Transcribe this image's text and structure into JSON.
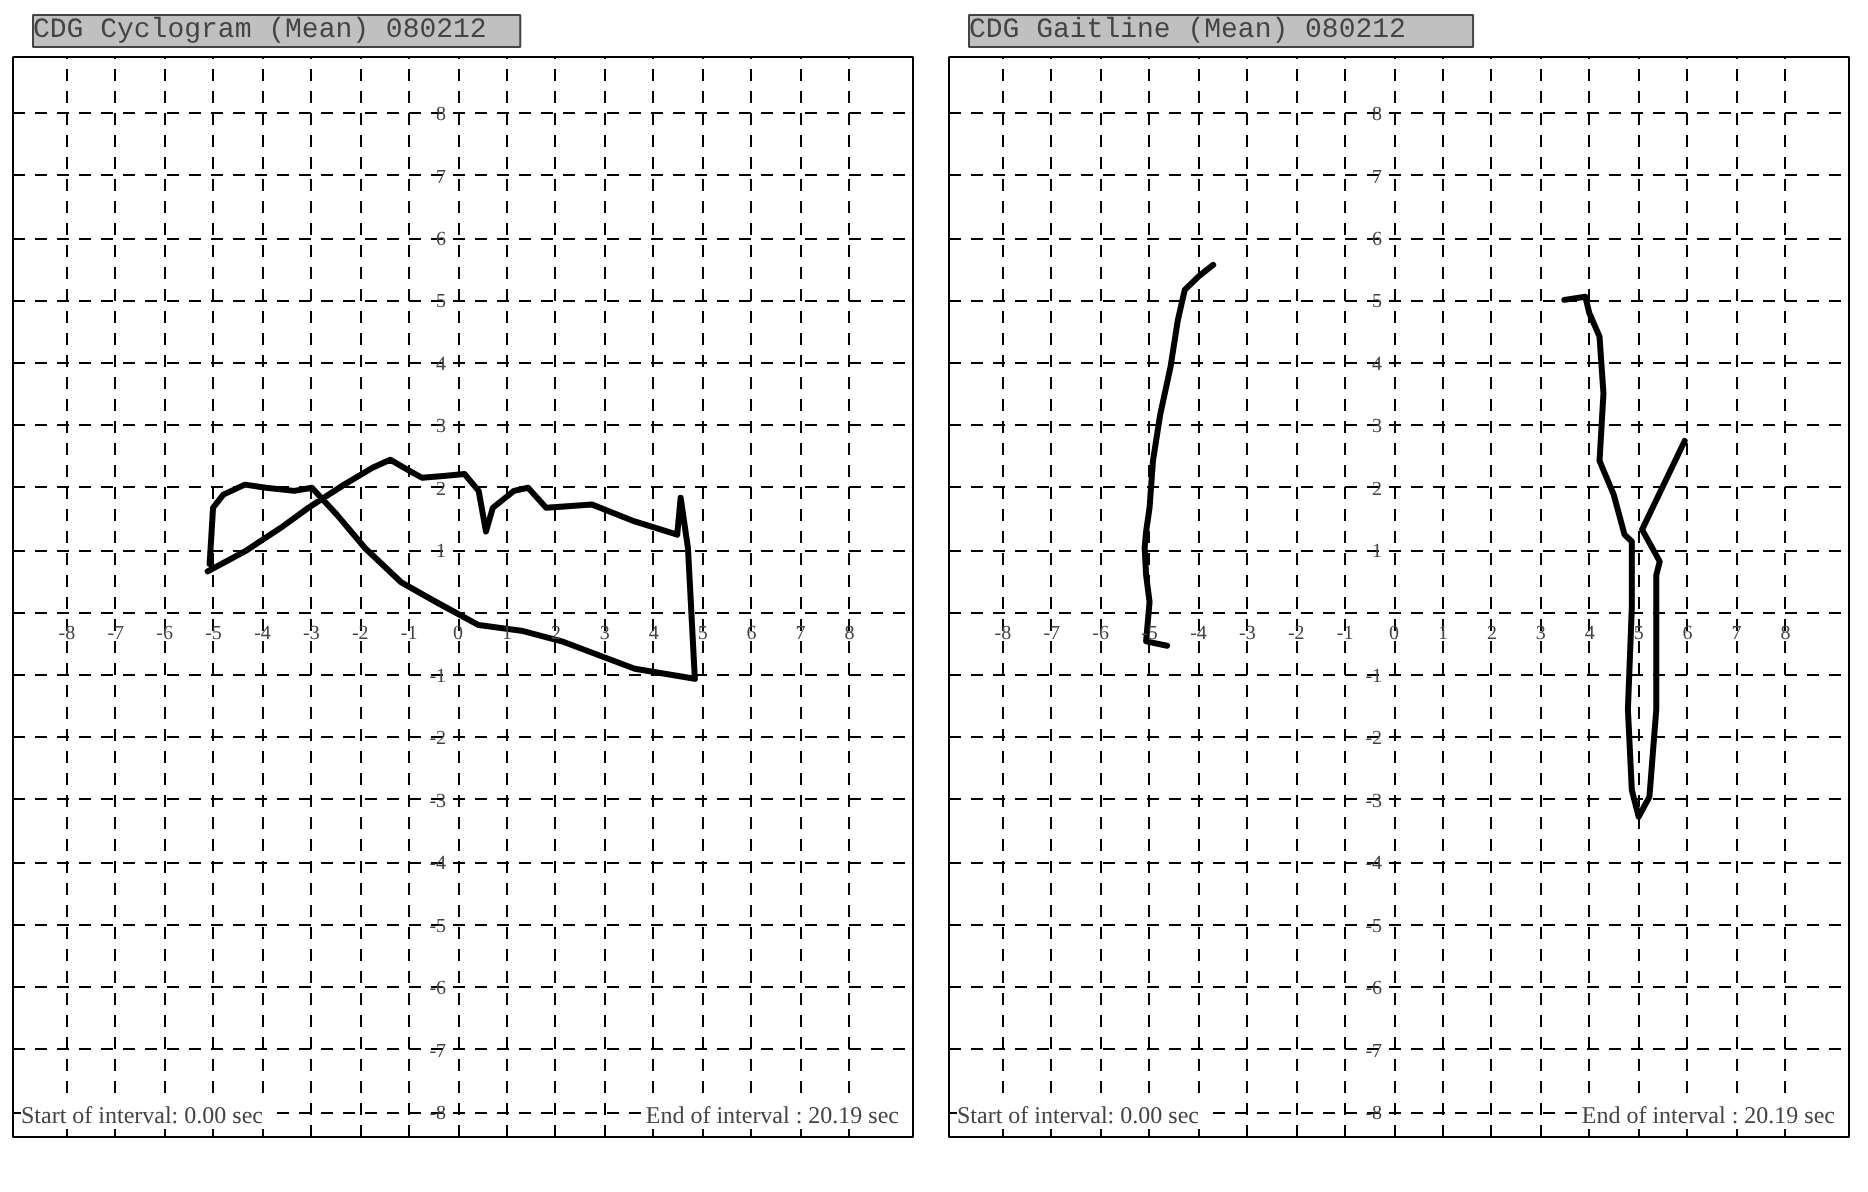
{
  "chart_data": [
    {
      "type": "line",
      "title": "CDG Cyclogram (Mean)   080212",
      "xlim": [
        -9.1,
        9.3
      ],
      "ylim": [
        -8.4,
        8.9
      ],
      "xticks": [
        -8,
        -7,
        -6,
        -5,
        -4,
        -3,
        -2,
        -1,
        0,
        1,
        2,
        3,
        4,
        5,
        6,
        7,
        8
      ],
      "yticks": [
        -8,
        -7,
        -6,
        -5,
        -4,
        -3,
        -2,
        -1,
        {
          "value": 0,
          "label": null
        },
        1,
        2,
        3,
        4,
        5,
        6,
        7,
        8
      ],
      "grid": true,
      "annotations": [
        "Start of interval:  0.00 sec",
        "End of interval  : 20.19 sec"
      ],
      "series": [
        {
          "color": "#000000",
          "x": [
            -5.12,
            -4.36,
            -3.64,
            -3.06,
            -2.33,
            -1.75,
            -1.39,
            -1.1,
            -0.74,
            -0.3,
            0.13,
            0.42,
            0.57,
            0.71,
            1.14,
            1.43,
            1.8,
            2.74,
            3.61,
            4.48,
            4.55,
            4.7,
            4.84,
            3.61,
            2.16,
            1.29,
            0.42,
            -0.45,
            -1.17,
            -1.9,
            -2.48,
            -2.99,
            -3.35,
            -3.93,
            -4.36,
            -4.8,
            -5.01,
            -5.08
          ],
          "values": [
            0.66,
            0.98,
            1.35,
            1.68,
            2.05,
            2.32,
            2.45,
            2.32,
            2.16,
            2.19,
            2.22,
            1.95,
            1.3,
            1.68,
            1.95,
            2.0,
            1.68,
            1.73,
            1.46,
            1.25,
            1.84,
            1.03,
            -1.06,
            -0.9,
            -0.47,
            -0.29,
            -0.2,
            0.17,
            0.49,
            1.03,
            1.57,
            2.0,
            1.95,
            2.0,
            2.05,
            1.89,
            1.68,
            0.78
          ]
        }
      ]
    },
    {
      "type": "line",
      "title": "CDG Gaitline (Mean)     080212",
      "xlim": [
        -9.1,
        9.3
      ],
      "ylim": [
        -8.4,
        8.9
      ],
      "xticks": [
        -8,
        -7,
        -6,
        -5,
        -4,
        -3,
        -2,
        -1,
        0,
        1,
        2,
        3,
        4,
        5,
        6,
        7,
        8
      ],
      "yticks": [
        -8,
        -7,
        -6,
        -5,
        -4,
        -3,
        -2,
        -1,
        {
          "value": 0,
          "label": null
        },
        1,
        2,
        3,
        4,
        5,
        6,
        7,
        8
      ],
      "grid": true,
      "annotations": [
        "Start of interval:  0.00 sec",
        "End of interval  : 20.19 sec"
      ],
      "series": [
        {
          "color": "#000000",
          "x": [
            -3.7,
            -3.99,
            -4.28,
            -4.42,
            -4.57,
            -4.78,
            -4.93,
            -5.0,
            -5.07,
            -5.1,
            -5.07,
            -5.0,
            -5.07,
            -4.64
          ],
          "values": [
            5.57,
            5.39,
            5.17,
            4.69,
            3.94,
            3.18,
            2.43,
            1.68,
            1.3,
            1.04,
            0.6,
            0.17,
            -0.46,
            -0.53
          ]
        },
        {
          "color": "#000000",
          "x": [
            3.48,
            3.91,
            3.99,
            4.2,
            4.28,
            4.2,
            4.49,
            4.71,
            4.86,
            4.86,
            4.78,
            4.86,
            5.0,
            5.22,
            5.36,
            5.36,
            5.43,
            5.07,
            5.94
          ],
          "values": [
            5.01,
            5.06,
            4.8,
            4.42,
            3.51,
            2.43,
            1.89,
            1.25,
            1.14,
            0.08,
            -1.55,
            -2.84,
            -3.27,
            -2.95,
            -1.55,
            0.6,
            0.82,
            1.33,
            2.75
          ]
        }
      ]
    }
  ]
}
